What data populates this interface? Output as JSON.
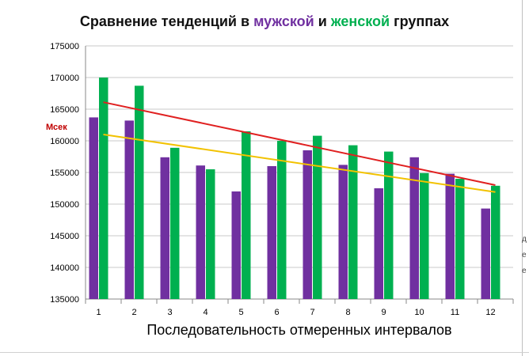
{
  "chart_data": {
    "type": "bar",
    "title_parts": [
      "Сравнение  тенденций в ",
      "мужской",
      " и ",
      "женской",
      " группах"
    ],
    "ylabel": "Мсек",
    "xlabel": "Последовательность  отмеренных  интервалов",
    "categories": [
      "1",
      "2",
      "3",
      "4",
      "5",
      "6",
      "7",
      "8",
      "9",
      "10",
      "11",
      "12"
    ],
    "ylim": [
      135000,
      175000
    ],
    "yticks": [
      135000,
      140000,
      145000,
      150000,
      155000,
      160000,
      165000,
      170000,
      175000
    ],
    "grid": true,
    "legend": "none",
    "series": [
      {
        "color": "#7030a0",
        "values": [
          163700,
          163200,
          157400,
          156100,
          152000,
          156000,
          158500,
          156200,
          152500,
          157400,
          154800,
          149300
        ]
      },
      {
        "color": "#00b050",
        "values": [
          170000,
          168700,
          158900,
          155500,
          161500,
          160000,
          160800,
          159300,
          158300,
          154900,
          154000,
          152900
        ]
      }
    ],
    "trendlines": [
      {
        "color": "#e02020",
        "start": 166100,
        "end": 153000
      },
      {
        "color": "#f2c200",
        "start": 161000,
        "end": 151900
      }
    ]
  },
  "right_clip_text": "д\nе\nе"
}
